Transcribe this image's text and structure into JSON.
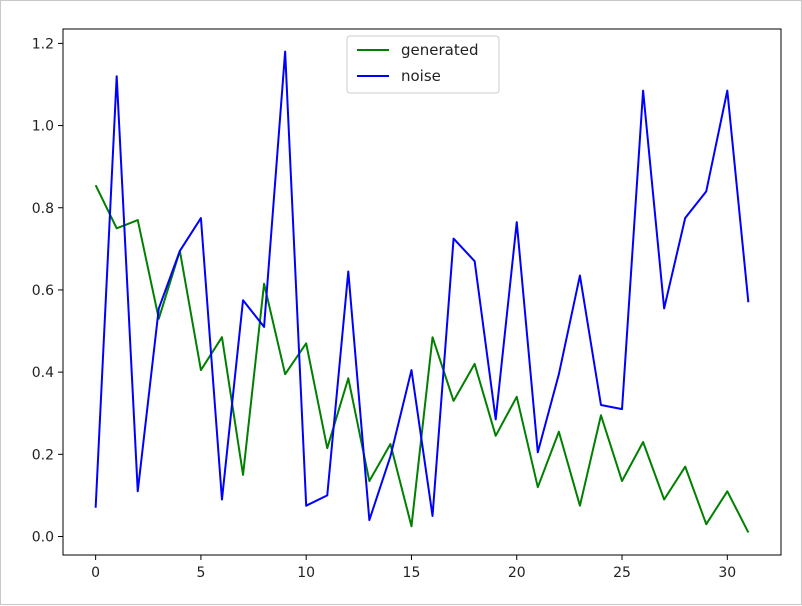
{
  "chart_data": {
    "type": "line",
    "title": "",
    "xlabel": "",
    "ylabel": "",
    "xlim": [
      -1.55,
      32.55
    ],
    "ylim": [
      -0.045,
      1.235
    ],
    "xticks": [
      0,
      5,
      10,
      15,
      20,
      25,
      30
    ],
    "yticks": [
      0.0,
      0.2,
      0.4,
      0.6,
      0.8,
      1.0,
      1.2
    ],
    "xtick_labels": [
      "0",
      "5",
      "10",
      "15",
      "20",
      "25",
      "30"
    ],
    "ytick_labels": [
      "0.0",
      "0.2",
      "0.4",
      "0.6",
      "0.8",
      "1.0",
      "1.2"
    ],
    "grid": false,
    "legend_position": "top-center",
    "x": [
      0,
      1,
      2,
      3,
      4,
      5,
      6,
      7,
      8,
      9,
      10,
      11,
      12,
      13,
      14,
      15,
      16,
      17,
      18,
      19,
      20,
      21,
      22,
      23,
      24,
      25,
      26,
      27,
      28,
      29,
      30,
      31
    ],
    "series": [
      {
        "name": "generated",
        "color": "#008000",
        "values": [
          0.855,
          0.75,
          0.77,
          0.53,
          0.695,
          0.405,
          0.485,
          0.15,
          0.615,
          0.395,
          0.47,
          0.215,
          0.385,
          0.135,
          0.225,
          0.025,
          0.485,
          0.33,
          0.42,
          0.245,
          0.34,
          0.12,
          0.255,
          0.075,
          0.295,
          0.135,
          0.23,
          0.09,
          0.17,
          0.03,
          0.11,
          0.01
        ]
      },
      {
        "name": "noise",
        "color": "#0000ff",
        "values": [
          0.07,
          1.12,
          0.11,
          0.555,
          0.695,
          0.775,
          0.09,
          0.575,
          0.51,
          1.18,
          0.075,
          0.1,
          0.645,
          0.04,
          0.195,
          0.405,
          0.05,
          0.725,
          0.67,
          0.285,
          0.765,
          0.205,
          0.395,
          0.635,
          0.32,
          0.31,
          1.085,
          0.555,
          0.775,
          0.84,
          1.085,
          0.57
        ]
      }
    ]
  }
}
